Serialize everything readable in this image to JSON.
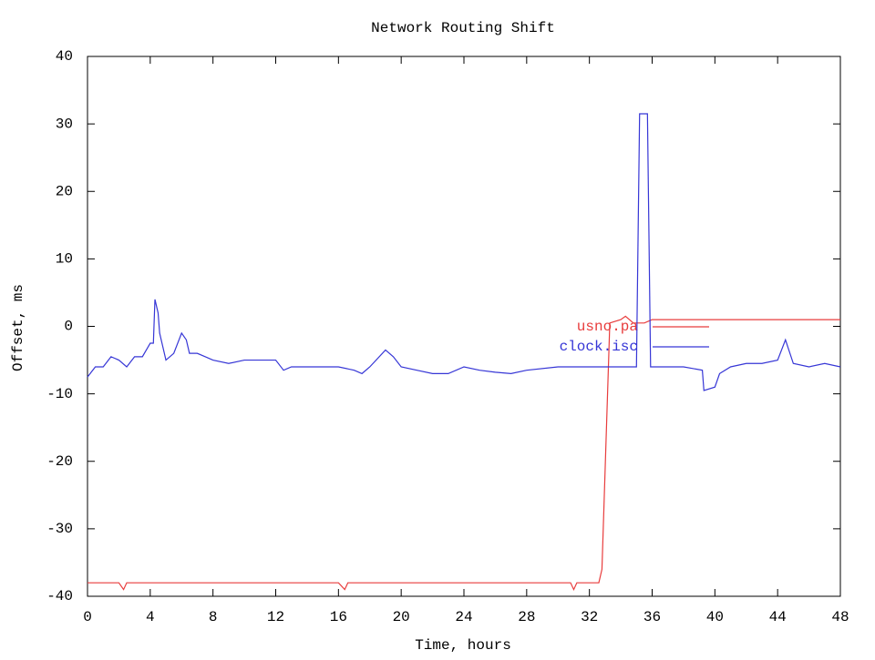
{
  "chart_data": {
    "type": "line",
    "title": "Network Routing Shift",
    "x_label": "Time, hours",
    "y_label": "Offset, ms",
    "xlim": [
      0,
      48
    ],
    "xticks": [
      0,
      4,
      8,
      12,
      16,
      20,
      24,
      28,
      32,
      36,
      40,
      44,
      48
    ],
    "ylim": [
      -40,
      40
    ],
    "yticks": [
      -40,
      -30,
      -20,
      -10,
      0,
      10,
      20,
      30,
      40
    ],
    "legend": "upper right",
    "series": [
      {
        "name": "usno.pa",
        "color": "#e83c3c",
        "x": [
          0,
          2,
          2.3,
          2.5,
          2.7,
          8,
          12,
          16,
          16.4,
          16.6,
          17,
          20,
          24,
          28,
          30.8,
          31,
          31.2,
          32.6,
          32.8,
          33.3,
          34,
          34.3,
          34.8,
          35.5,
          36,
          38,
          40,
          42,
          44,
          46,
          47,
          48
        ],
        "values": [
          -38,
          -38,
          -39,
          -38,
          -38,
          -38,
          -38,
          -38,
          -39,
          -38,
          -38,
          -38,
          -38,
          -38,
          -38,
          -39,
          -38,
          -38,
          -36,
          0.5,
          1,
          1.5,
          0.5,
          0.5,
          1,
          1,
          1,
          1,
          1,
          1,
          1,
          1
        ]
      },
      {
        "name": "clock.isc",
        "color": "#3636d6",
        "x": [
          0,
          0.5,
          1,
          1.5,
          2,
          2.5,
          3,
          3.5,
          4,
          4.2,
          4.3,
          4.5,
          4.6,
          5,
          5.5,
          6,
          6.3,
          6.5,
          7,
          7.5,
          8,
          9,
          10,
          11,
          12,
          12.5,
          13,
          14,
          16,
          17,
          17.5,
          18,
          19,
          19.5,
          20,
          21,
          22,
          23,
          24,
          25,
          26,
          27,
          28,
          30,
          32,
          34,
          35,
          35.2,
          35.7,
          35.9,
          38,
          39.2,
          39.3,
          40,
          40.3,
          41,
          42,
          43,
          44,
          44.5,
          45,
          46,
          47,
          48
        ],
        "values": [
          -7.5,
          -6,
          -6,
          -4.5,
          -5,
          -6,
          -4.5,
          -4.5,
          -2.5,
          -2.5,
          4,
          2,
          -1,
          -5,
          -4,
          -1,
          -2,
          -4,
          -4,
          -4.5,
          -5,
          -5.5,
          -5,
          -5,
          -5,
          -6.5,
          -6,
          -6,
          -6,
          -6.5,
          -7,
          -6,
          -3.5,
          -4.5,
          -6,
          -6.5,
          -7,
          -7,
          -6,
          -6.5,
          -6.8,
          -7,
          -6.5,
          -6,
          -6,
          -6,
          -6,
          31.5,
          31.5,
          -6,
          -6,
          -6.5,
          -9.5,
          -9,
          -7,
          -6,
          -5.5,
          -5.5,
          -5,
          -2,
          -5.5,
          -6,
          -5.5,
          -6
        ]
      }
    ]
  }
}
